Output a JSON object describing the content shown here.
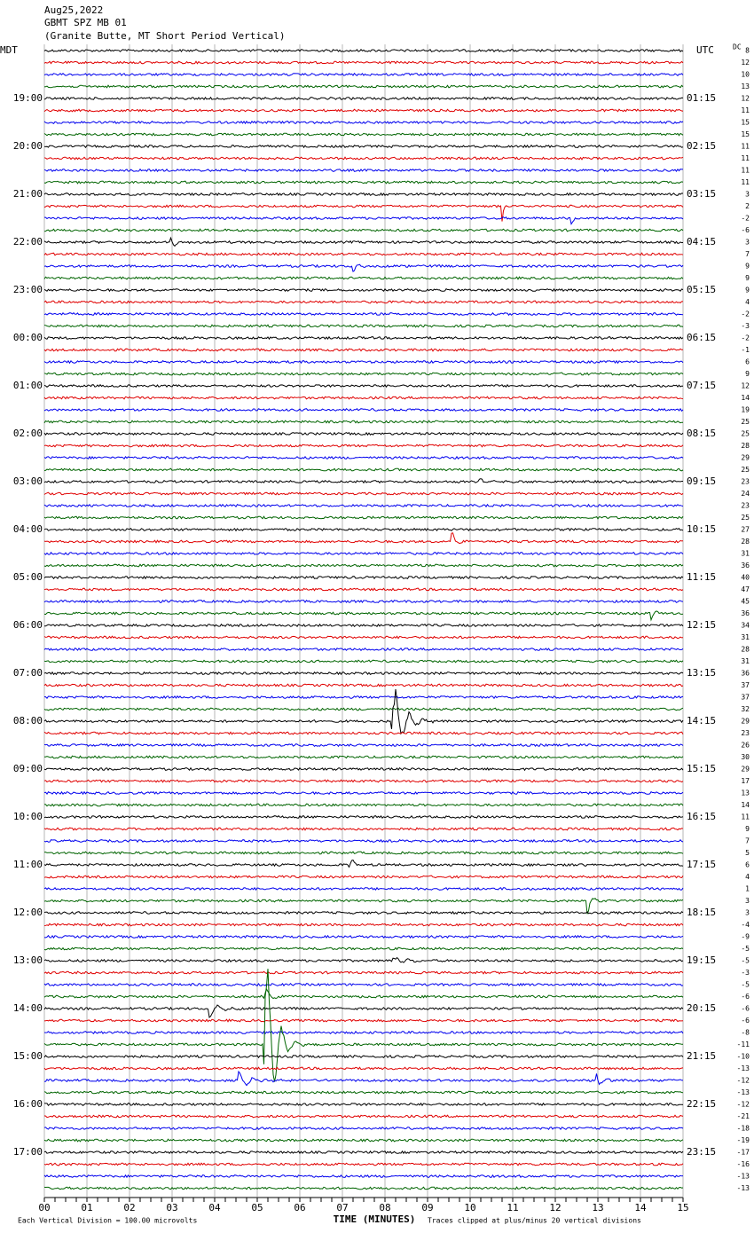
{
  "header": {
    "date": "Aug25,2022",
    "station": "GBMT SPZ MB 01",
    "description": "(Granite Butte, MT Short Period Vertical)"
  },
  "labels": {
    "left_zone": "MDT",
    "right_zone": "UTC",
    "dc": "DC"
  },
  "left_times": [
    "19:00",
    "20:00",
    "21:00",
    "22:00",
    "23:00",
    "00:00",
    "01:00",
    "02:00",
    "03:00",
    "04:00",
    "05:00",
    "06:00",
    "07:00",
    "08:00",
    "09:00",
    "10:00",
    "11:00",
    "12:00",
    "13:00",
    "14:00",
    "15:00",
    "16:00",
    "17:00"
  ],
  "right_times": [
    "01:15",
    "02:15",
    "03:15",
    "04:15",
    "05:15",
    "06:15",
    "07:15",
    "08:15",
    "09:15",
    "10:15",
    "11:15",
    "12:15",
    "13:15",
    "14:15",
    "15:15",
    "16:15",
    "17:15",
    "18:15",
    "19:15",
    "20:15",
    "21:15",
    "22:15",
    "23:15"
  ],
  "dc_values": [
    8,
    12,
    10,
    13,
    12,
    11,
    15,
    15,
    11,
    11,
    11,
    11,
    3,
    2,
    -2,
    -6,
    3,
    7,
    9,
    9,
    9,
    4,
    -2,
    -3,
    -2,
    -1,
    6,
    9,
    12,
    14,
    19,
    25,
    25,
    28,
    29,
    25,
    23,
    24,
    23,
    25,
    27,
    28,
    31,
    36,
    40,
    47,
    45,
    36,
    34,
    31,
    28,
    31,
    36,
    37,
    37,
    32,
    29,
    23,
    26,
    30,
    29,
    17,
    13,
    14,
    11,
    9,
    7,
    5,
    6,
    4,
    1,
    3,
    3,
    -4,
    -9,
    -5,
    -5,
    -3,
    -5,
    -6,
    -6,
    -6,
    -8,
    -11,
    -10,
    -13,
    -12,
    -13,
    -12,
    -21,
    -18,
    -19,
    -17,
    -16,
    -13,
    -13
  ],
  "x_axis": {
    "ticks": [
      "00",
      "01",
      "02",
      "03",
      "04",
      "05",
      "06",
      "07",
      "08",
      "09",
      "10",
      "11",
      "12",
      "13",
      "14",
      "15"
    ],
    "title": "TIME (MINUTES)"
  },
  "footer": {
    "scale": "Each Vertical Division =  100.00 microvolts",
    "clip": "Traces clipped at plus/minus 20 vertical divisions"
  }
}
